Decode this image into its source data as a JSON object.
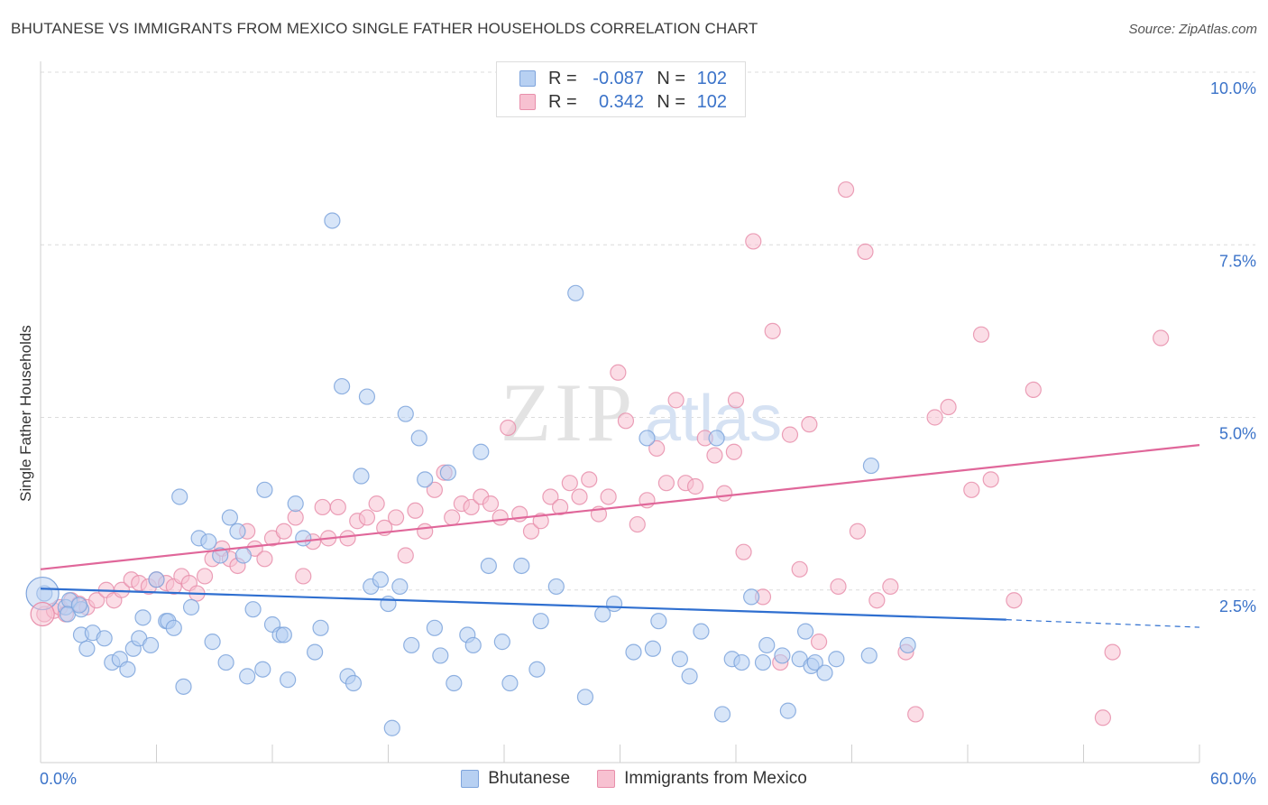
{
  "title": "BHUTANESE VS IMMIGRANTS FROM MEXICO SINGLE FATHER HOUSEHOLDS CORRELATION CHART",
  "source": "Source: ZipAtlas.com",
  "watermark": {
    "zip": "ZIP",
    "atlas": "atlas"
  },
  "legend": {
    "rows": [
      {
        "r_label": "R =",
        "r_value": "-0.087",
        "n_label": "N =",
        "n_value": "102",
        "color_fill": "#b7d0f2",
        "color_stroke": "#7ea4dc"
      },
      {
        "r_label": "R =",
        "r_value": "0.342",
        "n_label": "N =",
        "n_value": "102",
        "color_fill": "#f7c1d1",
        "color_stroke": "#e88fab"
      }
    ]
  },
  "bottom_legend": [
    {
      "label": "Bhutanese",
      "color_fill": "#b7d0f2",
      "color_stroke": "#7ea4dc"
    },
    {
      "label": "Immigrants from Mexico",
      "color_fill": "#f7c1d1",
      "color_stroke": "#e88fab"
    }
  ],
  "chart_data": {
    "type": "scatter",
    "title": "BHUTANESE VS IMMIGRANTS FROM MEXICO SINGLE FATHER HOUSEHOLDS CORRELATION CHART",
    "xlabel": "",
    "ylabel": "Single Father Households",
    "xlim": [
      0,
      60
    ],
    "ylim": [
      0,
      10
    ],
    "x_tick_labels": [
      "0.0%",
      "60.0%"
    ],
    "y_ticks": [
      2.5,
      5.0,
      7.5,
      10.0
    ],
    "y_tick_labels": [
      "2.5%",
      "5.0%",
      "7.5%",
      "10.0%"
    ],
    "grid": "horizontal dashed",
    "legend_position": "top-center",
    "series": [
      {
        "name": "Bhutanese",
        "color": "#7ea4dc",
        "fill": "#b7d0f2",
        "trend": {
          "x0": 0,
          "y0": 2.52,
          "x1": 50,
          "y1": 2.07,
          "dashed_to_x": 60,
          "dashed_to_y": 1.96
        },
        "points": [
          [
            0.2,
            2.45
          ],
          [
            1.3,
            2.25
          ],
          [
            1.5,
            2.35
          ],
          [
            1.4,
            2.15
          ],
          [
            2.1,
            2.22
          ],
          [
            2.0,
            2.28
          ],
          [
            2.1,
            1.85
          ],
          [
            2.4,
            1.65
          ],
          [
            2.7,
            1.88
          ],
          [
            3.3,
            1.8
          ],
          [
            3.7,
            1.45
          ],
          [
            4.1,
            1.5
          ],
          [
            4.5,
            1.35
          ],
          [
            4.8,
            1.65
          ],
          [
            5.1,
            1.8
          ],
          [
            5.3,
            2.1
          ],
          [
            5.7,
            1.7
          ],
          [
            6.0,
            2.65
          ],
          [
            6.5,
            2.05
          ],
          [
            6.6,
            2.05
          ],
          [
            6.9,
            1.95
          ],
          [
            7.2,
            3.85
          ],
          [
            7.4,
            1.1
          ],
          [
            7.8,
            2.25
          ],
          [
            8.2,
            3.25
          ],
          [
            8.7,
            3.2
          ],
          [
            8.9,
            1.75
          ],
          [
            9.3,
            3.0
          ],
          [
            9.6,
            1.45
          ],
          [
            9.8,
            3.55
          ],
          [
            10.2,
            3.35
          ],
          [
            10.5,
            3.0
          ],
          [
            10.7,
            1.25
          ],
          [
            11.0,
            2.22
          ],
          [
            11.5,
            1.35
          ],
          [
            11.6,
            3.95
          ],
          [
            12.0,
            2.0
          ],
          [
            12.4,
            1.85
          ],
          [
            12.6,
            1.85
          ],
          [
            12.8,
            1.2
          ],
          [
            13.2,
            3.75
          ],
          [
            13.6,
            3.25
          ],
          [
            14.2,
            1.6
          ],
          [
            14.5,
            1.95
          ],
          [
            15.1,
            7.85
          ],
          [
            15.6,
            5.45
          ],
          [
            15.9,
            1.25
          ],
          [
            16.2,
            1.15
          ],
          [
            16.6,
            4.15
          ],
          [
            16.9,
            5.3
          ],
          [
            17.1,
            2.55
          ],
          [
            17.6,
            2.65
          ],
          [
            18.0,
            2.3
          ],
          [
            18.2,
            0.5
          ],
          [
            18.6,
            2.55
          ],
          [
            18.9,
            5.05
          ],
          [
            19.2,
            1.7
          ],
          [
            19.6,
            4.7
          ],
          [
            19.9,
            4.1
          ],
          [
            20.4,
            1.95
          ],
          [
            20.7,
            1.55
          ],
          [
            21.1,
            4.2
          ],
          [
            21.4,
            1.15
          ],
          [
            22.1,
            1.85
          ],
          [
            22.4,
            1.7
          ],
          [
            22.8,
            4.5
          ],
          [
            23.2,
            2.85
          ],
          [
            23.9,
            1.75
          ],
          [
            24.3,
            1.15
          ],
          [
            24.9,
            2.85
          ],
          [
            25.7,
            1.35
          ],
          [
            25.9,
            2.05
          ],
          [
            26.7,
            2.55
          ],
          [
            27.7,
            6.8
          ],
          [
            28.2,
            0.95
          ],
          [
            29.1,
            2.15
          ],
          [
            29.7,
            2.3
          ],
          [
            30.7,
            1.6
          ],
          [
            31.4,
            4.7
          ],
          [
            31.7,
            1.65
          ],
          [
            32.0,
            2.05
          ],
          [
            33.1,
            1.5
          ],
          [
            33.6,
            1.25
          ],
          [
            34.2,
            1.9
          ],
          [
            35.0,
            4.7
          ],
          [
            35.3,
            0.7
          ],
          [
            35.8,
            1.5
          ],
          [
            36.3,
            1.45
          ],
          [
            36.8,
            2.4
          ],
          [
            37.4,
            1.45
          ],
          [
            37.6,
            1.7
          ],
          [
            38.4,
            1.55
          ],
          [
            38.7,
            0.75
          ],
          [
            39.3,
            1.5
          ],
          [
            39.6,
            1.9
          ],
          [
            39.9,
            1.4
          ],
          [
            40.1,
            1.45
          ],
          [
            40.6,
            1.3
          ],
          [
            41.2,
            1.5
          ],
          [
            42.9,
            1.55
          ],
          [
            43.0,
            4.3
          ],
          [
            44.9,
            1.7
          ]
        ]
      },
      {
        "name": "Immigrants from Mexico",
        "color": "#e88fab",
        "fill": "#f7c1d1",
        "trend": {
          "x0": 0,
          "y0": 2.8,
          "x1": 60,
          "y1": 4.6
        },
        "points": [
          [
            0.2,
            2.15
          ],
          [
            0.7,
            2.2
          ],
          [
            1.0,
            2.25
          ],
          [
            1.3,
            2.15
          ],
          [
            1.6,
            2.35
          ],
          [
            2.0,
            2.3
          ],
          [
            2.4,
            2.25
          ],
          [
            2.9,
            2.35
          ],
          [
            3.4,
            2.5
          ],
          [
            3.8,
            2.35
          ],
          [
            4.2,
            2.5
          ],
          [
            4.7,
            2.65
          ],
          [
            5.1,
            2.6
          ],
          [
            5.6,
            2.55
          ],
          [
            6.0,
            2.65
          ],
          [
            6.5,
            2.6
          ],
          [
            6.9,
            2.55
          ],
          [
            7.3,
            2.7
          ],
          [
            7.7,
            2.6
          ],
          [
            8.1,
            2.45
          ],
          [
            8.5,
            2.7
          ],
          [
            8.9,
            2.95
          ],
          [
            9.4,
            3.1
          ],
          [
            9.8,
            2.95
          ],
          [
            10.2,
            2.85
          ],
          [
            10.7,
            3.35
          ],
          [
            11.1,
            3.1
          ],
          [
            11.6,
            2.95
          ],
          [
            12.0,
            3.25
          ],
          [
            12.6,
            3.35
          ],
          [
            13.2,
            3.55
          ],
          [
            13.6,
            2.7
          ],
          [
            14.1,
            3.2
          ],
          [
            14.6,
            3.7
          ],
          [
            14.9,
            3.25
          ],
          [
            15.4,
            3.7
          ],
          [
            15.9,
            3.25
          ],
          [
            16.4,
            3.5
          ],
          [
            16.9,
            3.55
          ],
          [
            17.4,
            3.75
          ],
          [
            17.8,
            3.4
          ],
          [
            18.4,
            3.55
          ],
          [
            18.9,
            3.0
          ],
          [
            19.4,
            3.65
          ],
          [
            19.9,
            3.35
          ],
          [
            20.4,
            3.95
          ],
          [
            20.9,
            4.2
          ],
          [
            21.3,
            3.55
          ],
          [
            21.8,
            3.75
          ],
          [
            22.3,
            3.7
          ],
          [
            22.8,
            3.85
          ],
          [
            23.3,
            3.75
          ],
          [
            23.8,
            3.55
          ],
          [
            24.2,
            4.85
          ],
          [
            24.8,
            3.6
          ],
          [
            25.4,
            3.35
          ],
          [
            25.9,
            3.5
          ],
          [
            26.4,
            3.85
          ],
          [
            26.9,
            3.7
          ],
          [
            27.4,
            4.05
          ],
          [
            27.9,
            3.85
          ],
          [
            28.4,
            4.1
          ],
          [
            28.9,
            3.6
          ],
          [
            29.4,
            3.85
          ],
          [
            29.9,
            5.65
          ],
          [
            30.3,
            4.95
          ],
          [
            30.9,
            3.45
          ],
          [
            31.4,
            3.8
          ],
          [
            31.9,
            4.55
          ],
          [
            32.4,
            4.05
          ],
          [
            32.9,
            5.25
          ],
          [
            33.4,
            4.05
          ],
          [
            33.9,
            4.0
          ],
          [
            34.4,
            4.7
          ],
          [
            34.9,
            4.45
          ],
          [
            35.4,
            3.9
          ],
          [
            35.9,
            4.5
          ],
          [
            36.4,
            3.05
          ],
          [
            36.9,
            7.55
          ],
          [
            37.4,
            2.4
          ],
          [
            37.9,
            6.25
          ],
          [
            38.3,
            1.45
          ],
          [
            38.8,
            4.75
          ],
          [
            39.3,
            2.8
          ],
          [
            39.8,
            4.9
          ],
          [
            40.3,
            1.75
          ],
          [
            41.3,
            2.55
          ],
          [
            42.3,
            3.35
          ],
          [
            42.7,
            7.4
          ],
          [
            43.3,
            2.35
          ],
          [
            44.0,
            2.55
          ],
          [
            44.8,
            1.6
          ],
          [
            45.3,
            0.7
          ],
          [
            46.3,
            5.0
          ],
          [
            47.0,
            5.15
          ],
          [
            48.2,
            3.95
          ],
          [
            49.2,
            4.1
          ],
          [
            50.4,
            2.35
          ],
          [
            51.4,
            5.4
          ],
          [
            55.0,
            0.65
          ],
          [
            55.5,
            1.6
          ],
          [
            58.0,
            6.15
          ]
        ],
        "extra_points": [
          [
            41.7,
            8.3
          ],
          [
            48.7,
            6.2
          ],
          [
            36.0,
            5.25
          ]
        ]
      }
    ]
  }
}
